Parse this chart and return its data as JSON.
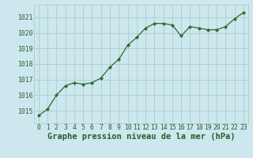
{
  "x": [
    0,
    1,
    2,
    3,
    4,
    5,
    6,
    7,
    8,
    9,
    10,
    11,
    12,
    13,
    14,
    15,
    16,
    17,
    18,
    19,
    20,
    21,
    22,
    23
  ],
  "y": [
    1014.7,
    1015.1,
    1016.0,
    1016.6,
    1016.8,
    1016.7,
    1016.8,
    1017.1,
    1017.8,
    1018.3,
    1019.2,
    1019.7,
    1020.3,
    1020.6,
    1020.6,
    1020.5,
    1019.8,
    1020.4,
    1020.3,
    1020.2,
    1020.2,
    1020.4,
    1020.9,
    1021.3
  ],
  "line_color": "#2d6a2d",
  "marker_color": "#2d6a2d",
  "bg_color": "#cce8ee",
  "grid_color": "#aacccc",
  "xlabel": "Graphe pression niveau de la mer (hPa)",
  "xlabel_color": "#2d5a2d",
  "ylim": [
    1014.2,
    1021.8
  ],
  "yticks": [
    1015,
    1016,
    1017,
    1018,
    1019,
    1020,
    1021
  ],
  "xticks": [
    0,
    1,
    2,
    3,
    4,
    5,
    6,
    7,
    8,
    9,
    10,
    11,
    12,
    13,
    14,
    15,
    16,
    17,
    18,
    19,
    20,
    21,
    22,
    23
  ],
  "tick_label_fontsize": 5.8,
  "xlabel_fontsize": 7.5
}
